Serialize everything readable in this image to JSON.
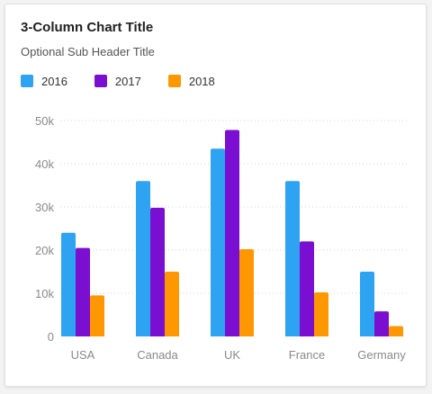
{
  "chart_data": {
    "type": "bar",
    "title": "3-Column Chart Title",
    "subtitle": "Optional Sub Header Title",
    "categories": [
      "USA",
      "Canada",
      "UK",
      "France",
      "Germany"
    ],
    "series": [
      {
        "name": "2016",
        "color": "#2ea3f2",
        "values": [
          24000,
          36000,
          43500,
          36000,
          15000
        ]
      },
      {
        "name": "2017",
        "color": "#7b0fd1",
        "values": [
          20500,
          29800,
          47800,
          22000,
          5800
        ]
      },
      {
        "name": "2018",
        "color": "#ff9800",
        "values": [
          9500,
          15000,
          20200,
          10200,
          2400
        ]
      }
    ],
    "yticks": [
      0,
      10000,
      20000,
      30000,
      40000,
      50000
    ],
    "ytick_labels": [
      "0",
      "10k",
      "20k",
      "30k",
      "40k",
      "50k"
    ],
    "ylim": [
      0,
      50000
    ],
    "grid": true,
    "legend_position": "top-left"
  }
}
